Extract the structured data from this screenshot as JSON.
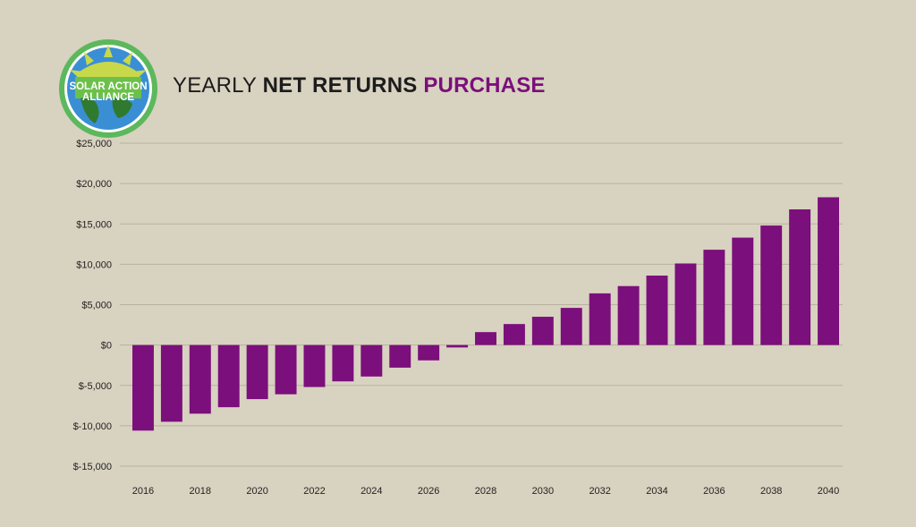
{
  "brand": {
    "logo_line1": "SOLAR ACTION",
    "logo_line2": "ALLIANCE"
  },
  "title": {
    "part1": "YEARLY ",
    "part2": "NET RETURNS ",
    "part3": "PURCHASE"
  },
  "colors": {
    "background": "#d8d2c0",
    "bar": "#7b0f7b",
    "accent": "#7b0f7b",
    "grid": "#b8b19e"
  },
  "chart_data": {
    "type": "bar",
    "title": "YEARLY NET RETURNS PURCHASE",
    "categories": [
      "2016",
      "2017",
      "2018",
      "2019",
      "2020",
      "2021",
      "2022",
      "2023",
      "2024",
      "2025",
      "2026",
      "2027",
      "2028",
      "2029",
      "2030",
      "2031",
      "2032",
      "2033",
      "2034",
      "2035",
      "2036",
      "2037",
      "2038",
      "2039",
      "2040"
    ],
    "x_tick_labels": [
      "2016",
      "2018",
      "2020",
      "2022",
      "2024",
      "2026",
      "2028",
      "2030",
      "2032",
      "2034",
      "2036",
      "2038",
      "2040"
    ],
    "values": [
      -10600,
      -9500,
      -8500,
      -7700,
      -6700,
      -6100,
      -5200,
      -4500,
      -3900,
      -2800,
      -1900,
      -300,
      1600,
      2600,
      3500,
      4600,
      6400,
      7300,
      8600,
      10100,
      11800,
      13300,
      14800,
      16800,
      18300
    ],
    "ylim": [
      -15000,
      25000
    ],
    "y_ticks": [
      25000,
      20000,
      15000,
      10000,
      5000,
      0,
      -5000,
      -10000,
      -15000
    ],
    "y_tick_labels": [
      "$25,000",
      "$20,000",
      "$15,000",
      "$10,000",
      "$5,000",
      "$0",
      "$-5,000",
      "$-10,000",
      "$-15,000"
    ],
    "grid": true,
    "legend": "none"
  }
}
